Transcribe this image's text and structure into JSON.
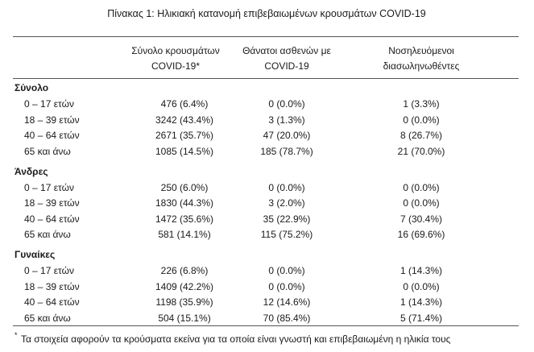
{
  "header": {
    "title": "Πίνακας 1: Ηλικιακή κατανομή επιβεβαιωμένων κρουσμάτων COVID-19"
  },
  "table": {
    "columns": [
      [
        "Σύνολο κρουσμάτων",
        "COVID-19*"
      ],
      [
        "Θάνατοι ασθενών με",
        "COVID-19"
      ],
      [
        "Νοσηλευόμενοι",
        "διασωληνωθέντες"
      ]
    ],
    "sections": [
      {
        "name": "Σύνολο",
        "rows": [
          [
            "0 – 17 ετών",
            "476 (6.4%)",
            "0 (0.0%)",
            "1 (3.3%)"
          ],
          [
            "18 – 39 ετών",
            "3242 (43.4%)",
            "3 (1.3%)",
            "0 (0.0%)"
          ],
          [
            "40 – 64 ετών",
            "2671 (35.7%)",
            "47 (20.0%)",
            "8 (26.7%)"
          ],
          [
            "65 και άνω",
            "1085 (14.5%)",
            "185 (78.7%)",
            "21 (70.0%)"
          ]
        ]
      },
      {
        "name": "Άνδρες",
        "rows": [
          [
            "0 – 17 ετών",
            "250 (6.0%)",
            "0 (0.0%)",
            "0 (0.0%)"
          ],
          [
            "18 – 39 ετών",
            "1830 (44.3%)",
            "3 (2.0%)",
            "0 (0.0%)"
          ],
          [
            "40 – 64 ετών",
            "1472 (35.6%)",
            "35 (22.9%)",
            "7 (30.4%)"
          ],
          [
            "65 και άνω",
            "581 (14.1%)",
            "115 (75.2%)",
            "16 (69.6%)"
          ]
        ]
      },
      {
        "name": "Γυναίκες",
        "rows": [
          [
            "0 – 17 ετών",
            "226 (6.8%)",
            "0 (0.0%)",
            "1 (14.3%)"
          ],
          [
            "18 – 39 ετών",
            "1409 (42.2%)",
            "0 (0.0%)",
            "0 (0.0%)"
          ],
          [
            "40 – 64 ετών",
            "1198 (35.9%)",
            "12 (14.6%)",
            "1 (14.3%)"
          ],
          [
            "65 και άνω",
            "504 (15.1%)",
            "70 (85.4%)",
            "5 (71.4%)"
          ]
        ]
      }
    ]
  },
  "footnote": {
    "marker": "*",
    "text": "Τα στοιχεία αφορούν τα κρούσματα εκείνα για τα οποία είναι γνωστή και επιβεβαιωμένη η ηλικία τους"
  }
}
